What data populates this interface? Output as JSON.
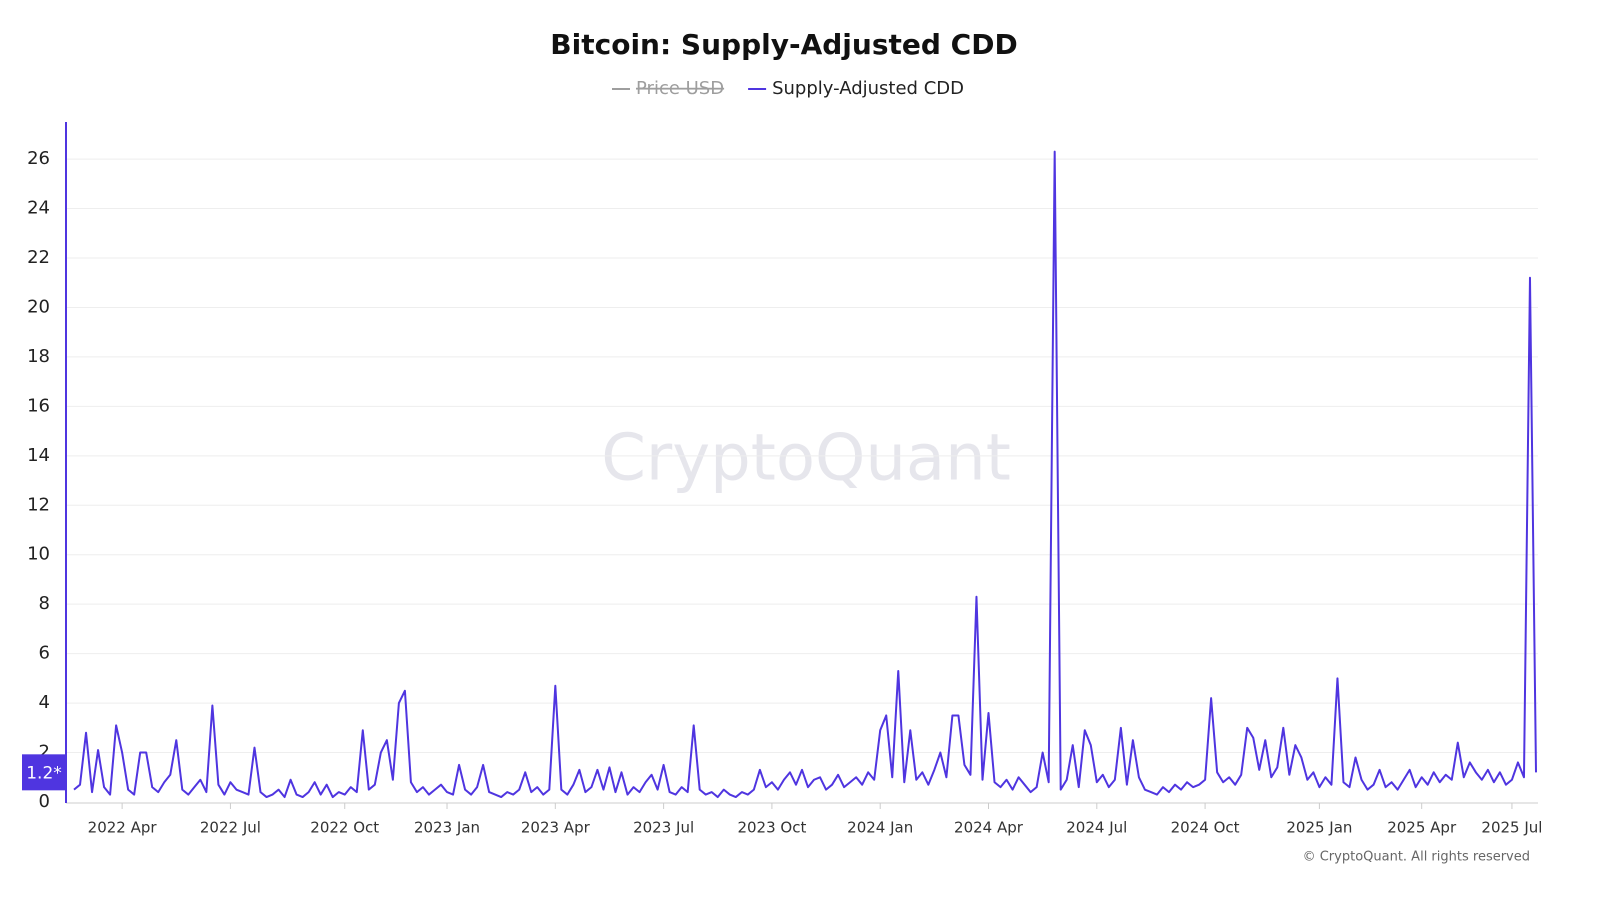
{
  "chart_data": {
    "type": "line",
    "title": "Bitcoin: Supply-Adjusted CDD",
    "hidden_series": [
      {
        "name": "Price USD",
        "color": "#9e9e9e"
      }
    ],
    "watermark": "CryptoQuant",
    "footer": "© CryptoQuant. All rights reserved",
    "current_label": {
      "value": 1.2,
      "label": "1.2*"
    },
    "ylim": [
      0,
      27.5
    ],
    "yticks": [
      0,
      2,
      4,
      6,
      8,
      10,
      12,
      14,
      16,
      18,
      20,
      22,
      24,
      26
    ],
    "grid": true,
    "categories": [
      null,
      null,
      null,
      null,
      null,
      null,
      null,
      null,
      "2022 Apr",
      null,
      null,
      null,
      null,
      null,
      null,
      null,
      null,
      null,
      null,
      null,
      null,
      null,
      null,
      null,
      null,
      null,
      "2022 Jul",
      null,
      null,
      null,
      null,
      null,
      null,
      null,
      null,
      null,
      null,
      null,
      null,
      null,
      null,
      null,
      null,
      null,
      null,
      "2022 Oct",
      null,
      null,
      null,
      null,
      null,
      null,
      null,
      null,
      null,
      null,
      null,
      null,
      null,
      null,
      null,
      null,
      "2023 Jan",
      null,
      null,
      null,
      null,
      null,
      null,
      null,
      null,
      null,
      null,
      null,
      null,
      null,
      null,
      null,
      null,
      null,
      "2023 Apr",
      null,
      null,
      null,
      null,
      null,
      null,
      null,
      null,
      null,
      null,
      null,
      null,
      null,
      null,
      null,
      null,
      null,
      "2023 Jul",
      null,
      null,
      null,
      null,
      null,
      null,
      null,
      null,
      null,
      null,
      null,
      null,
      null,
      null,
      null,
      null,
      null,
      "2023 Oct",
      null,
      null,
      null,
      null,
      null,
      null,
      null,
      null,
      null,
      null,
      null,
      null,
      null,
      null,
      null,
      null,
      null,
      "2024 Jan",
      null,
      null,
      null,
      null,
      null,
      null,
      null,
      null,
      null,
      null,
      null,
      null,
      null,
      null,
      null,
      null,
      null,
      "2024 Apr",
      null,
      null,
      null,
      null,
      null,
      null,
      null,
      null,
      null,
      null,
      null,
      null,
      null,
      null,
      null,
      null,
      null,
      "2024 Jul",
      null,
      null,
      null,
      null,
      null,
      null,
      null,
      null,
      null,
      null,
      null,
      null,
      null,
      null,
      null,
      null,
      null,
      "2024 Oct",
      null,
      null,
      null,
      null,
      null,
      null,
      null,
      null,
      null,
      null,
      null,
      null,
      null,
      null,
      null,
      null,
      null,
      null,
      "2025 Jan",
      null,
      null,
      null,
      null,
      null,
      null,
      null,
      null,
      null,
      null,
      null,
      null,
      null,
      null,
      null,
      null,
      "2025 Apr",
      null,
      null,
      null,
      null,
      null,
      null,
      null,
      null,
      null,
      null,
      null,
      null,
      null,
      null,
      "2025 Jul",
      null,
      null,
      null,
      null
    ],
    "series": [
      {
        "name": "Supply-Adjusted CDD",
        "color": "#4f35e0",
        "values": [
          0.5,
          0.7,
          2.8,
          0.4,
          2.1,
          0.6,
          0.3,
          3.1,
          2.0,
          0.5,
          0.3,
          2.0,
          2.0,
          0.6,
          0.4,
          0.8,
          1.1,
          2.5,
          0.5,
          0.3,
          0.6,
          0.9,
          0.4,
          3.9,
          0.7,
          0.3,
          0.8,
          0.5,
          0.4,
          0.3,
          2.2,
          0.4,
          0.2,
          0.3,
          0.5,
          0.2,
          0.9,
          0.3,
          0.2,
          0.4,
          0.8,
          0.3,
          0.7,
          0.2,
          0.4,
          0.3,
          0.6,
          0.4,
          2.9,
          0.5,
          0.7,
          2.0,
          2.5,
          0.9,
          4.0,
          4.5,
          0.8,
          0.4,
          0.6,
          0.3,
          0.5,
          0.7,
          0.4,
          0.3,
          1.5,
          0.5,
          0.3,
          0.6,
          1.5,
          0.4,
          0.3,
          0.2,
          0.4,
          0.3,
          0.5,
          1.2,
          0.4,
          0.6,
          0.3,
          0.5,
          4.7,
          0.5,
          0.3,
          0.7,
          1.3,
          0.4,
          0.6,
          1.3,
          0.5,
          1.4,
          0.4,
          1.2,
          0.3,
          0.6,
          0.4,
          0.8,
          1.1,
          0.5,
          1.5,
          0.4,
          0.3,
          0.6,
          0.4,
          3.1,
          0.5,
          0.3,
          0.4,
          0.2,
          0.5,
          0.3,
          0.2,
          0.4,
          0.3,
          0.5,
          1.3,
          0.6,
          0.8,
          0.5,
          0.9,
          1.2,
          0.7,
          1.3,
          0.6,
          0.9,
          1.0,
          0.5,
          0.7,
          1.1,
          0.6,
          0.8,
          1.0,
          0.7,
          1.2,
          0.9,
          2.9,
          3.5,
          1.0,
          5.3,
          0.8,
          2.9,
          0.9,
          1.2,
          0.7,
          1.3,
          2.0,
          1.0,
          3.5,
          3.5,
          1.5,
          1.1,
          8.3,
          0.9,
          3.6,
          0.8,
          0.6,
          0.9,
          0.5,
          1.0,
          0.7,
          0.4,
          0.6,
          2.0,
          0.8,
          26.3,
          0.5,
          0.9,
          2.3,
          0.6,
          2.9,
          2.3,
          0.8,
          1.1,
          0.6,
          0.9,
          3.0,
          0.7,
          2.5,
          1.0,
          0.5,
          0.4,
          0.3,
          0.6,
          0.4,
          0.7,
          0.5,
          0.8,
          0.6,
          0.7,
          0.9,
          4.2,
          1.2,
          0.8,
          1.0,
          0.7,
          1.1,
          3.0,
          2.6,
          1.3,
          2.5,
          1.0,
          1.4,
          3.0,
          1.1,
          2.3,
          1.8,
          0.9,
          1.2,
          0.6,
          1.0,
          0.7,
          5.0,
          0.8,
          0.6,
          1.8,
          0.9,
          0.5,
          0.7,
          1.3,
          0.6,
          0.8,
          0.5,
          0.9,
          1.3,
          0.6,
          1.0,
          0.7,
          1.2,
          0.8,
          1.1,
          0.9,
          2.4,
          1.0,
          1.6,
          1.2,
          0.9,
          1.3,
          0.8,
          1.2,
          0.7,
          0.9,
          1.6,
          1.0,
          21.2,
          1.2
        ]
      }
    ]
  }
}
